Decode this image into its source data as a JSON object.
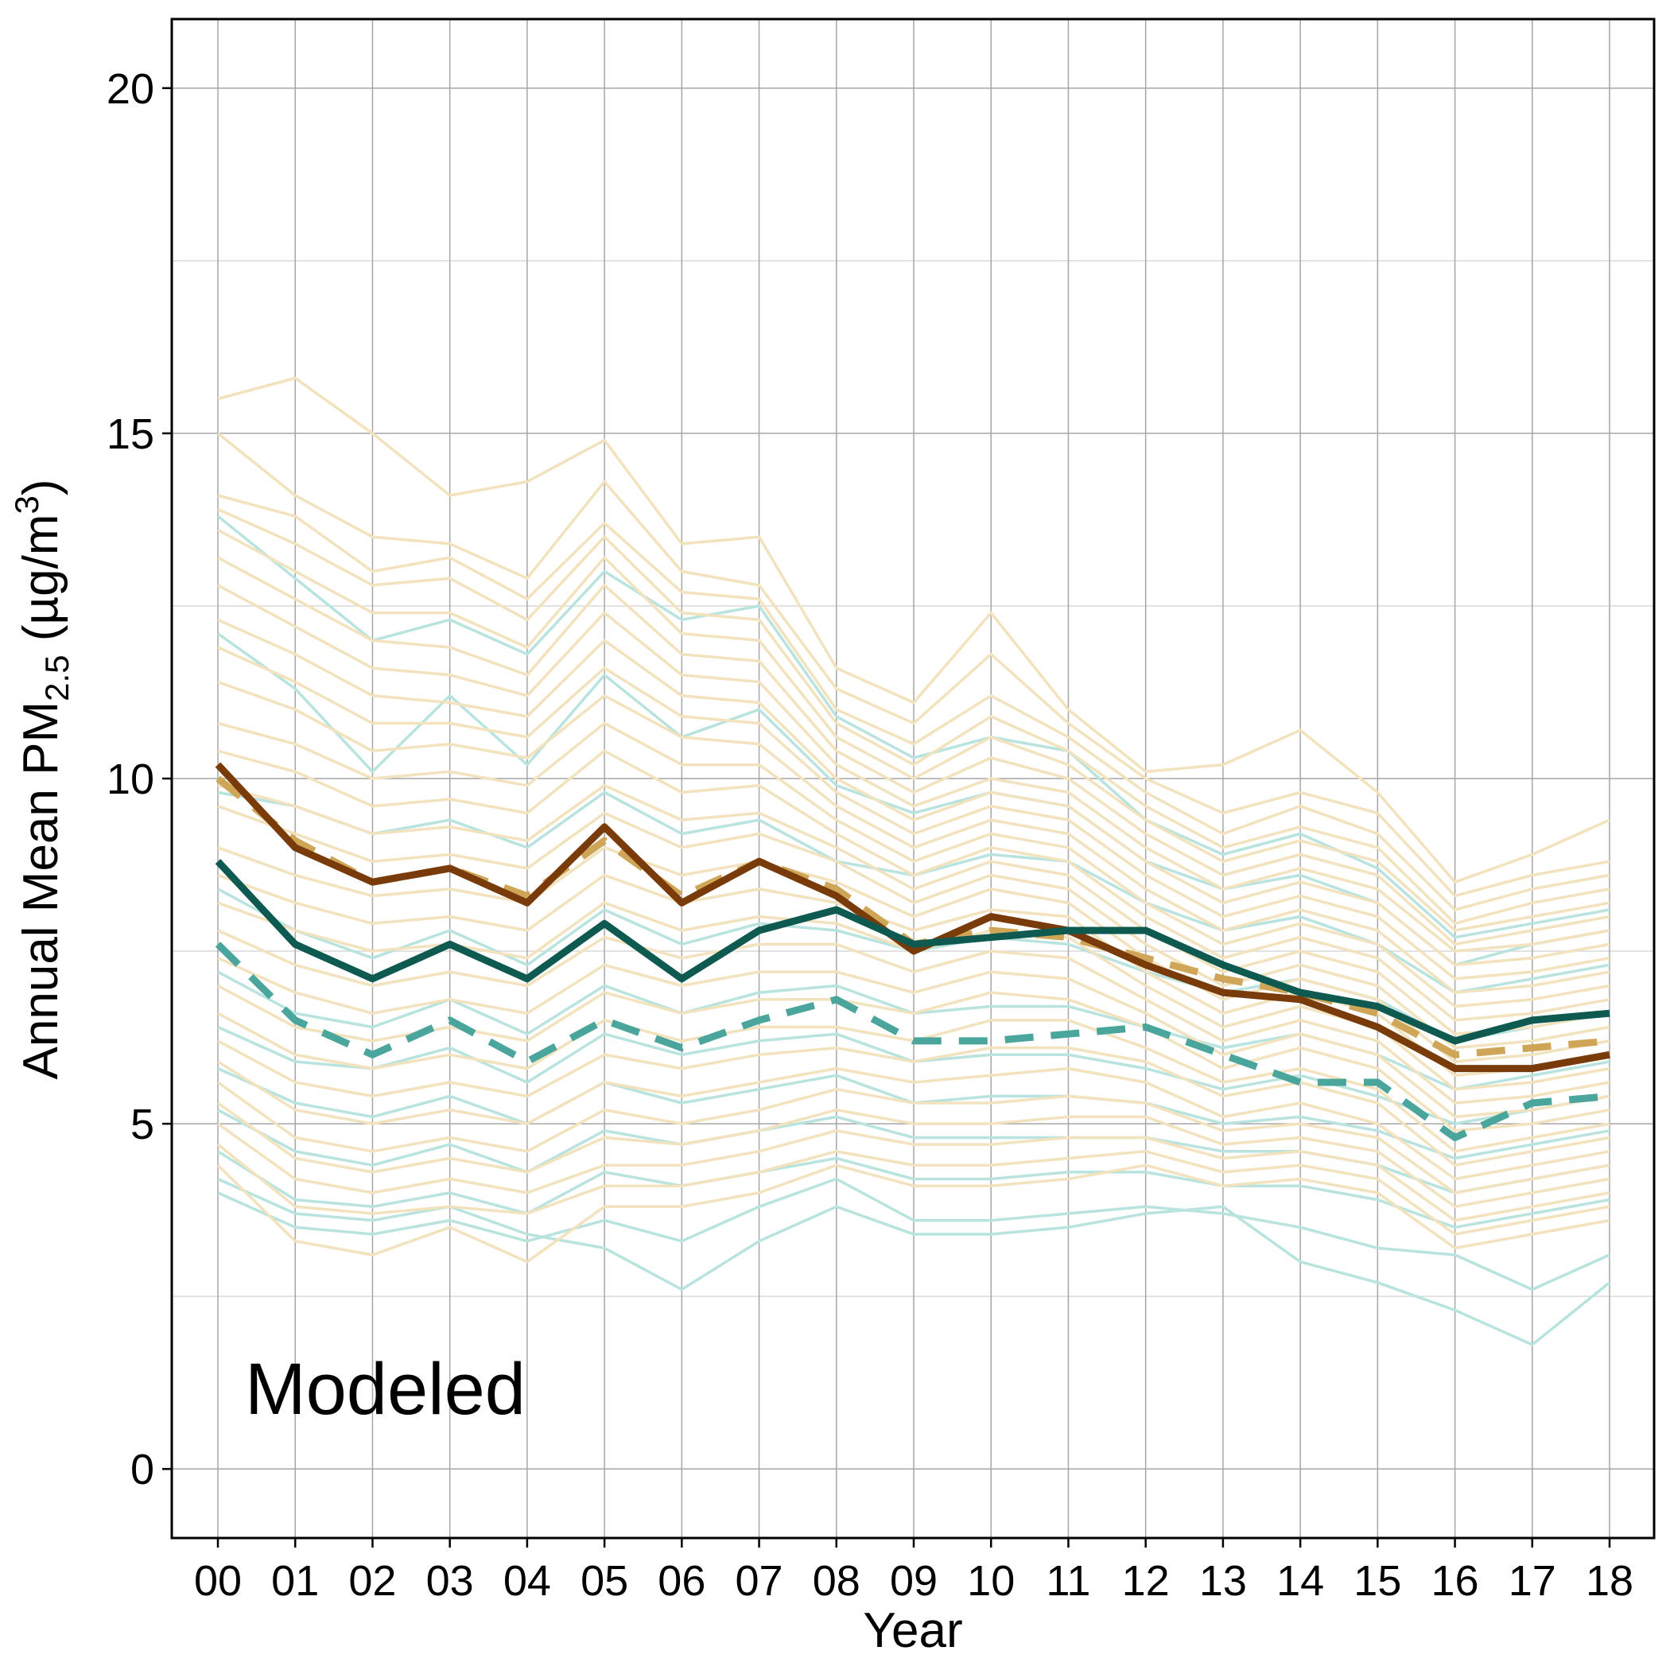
{
  "chart_data": {
    "type": "line",
    "title": "",
    "xlabel": "Year",
    "ylabel": "Annual Mean PM2.5 (µg/m3)",
    "ylabel_parts": {
      "prefix": "Annual Mean PM",
      "subscript": "2.5",
      "middle": " (µg/m",
      "superscript": "3",
      "suffix": ")"
    },
    "annotation": "Modeled",
    "x": [
      "00",
      "01",
      "02",
      "03",
      "04",
      "05",
      "06",
      "07",
      "08",
      "09",
      "10",
      "11",
      "12",
      "13",
      "14",
      "15",
      "16",
      "17",
      "18"
    ],
    "ylim": [
      -1,
      21
    ],
    "yticks": [
      0,
      5,
      10,
      15,
      20
    ],
    "grid": true,
    "legend": "none",
    "colors": {
      "light_tan": "#f2e2bd",
      "light_teal": "#b8e3de",
      "dark_brown": "#7a3b0a",
      "dark_teal": "#0e5a50",
      "tan_dashed": "#cfa657",
      "teal_dashed": "#4aa69c",
      "grid_major": "#a6a6a6",
      "grid_minor": "#d9d9d9",
      "axis": "#000000"
    },
    "background_series": {
      "tan": [
        [
          15.5,
          15.8,
          15.0,
          14.1,
          14.3,
          14.9,
          13.4,
          13.5,
          11.6,
          11.1,
          12.4,
          11.0,
          10.1,
          10.2,
          10.7,
          9.8,
          8.5,
          8.9,
          9.4
        ],
        [
          15.0,
          14.1,
          13.5,
          13.4,
          12.9,
          14.3,
          13.0,
          12.8,
          11.3,
          10.8,
          11.8,
          10.8,
          10.0,
          9.5,
          9.8,
          9.5,
          8.3,
          8.6,
          8.8
        ],
        [
          14.1,
          13.8,
          13.0,
          13.2,
          12.6,
          13.7,
          12.7,
          12.6,
          11.0,
          10.5,
          11.2,
          10.6,
          9.8,
          9.2,
          9.6,
          9.2,
          8.1,
          8.4,
          8.6
        ],
        [
          13.9,
          13.4,
          12.8,
          12.9,
          12.3,
          13.5,
          12.4,
          12.3,
          10.8,
          10.2,
          10.9,
          10.4,
          9.6,
          9.0,
          9.3,
          9.0,
          7.9,
          8.2,
          8.4
        ],
        [
          13.6,
          13.0,
          12.4,
          12.4,
          11.9,
          13.2,
          12.1,
          12.0,
          10.6,
          10.0,
          10.6,
          10.2,
          9.4,
          8.8,
          9.1,
          8.8,
          7.8,
          8.0,
          8.2
        ],
        [
          13.2,
          12.6,
          12.0,
          11.9,
          11.5,
          12.8,
          11.8,
          11.7,
          10.4,
          9.8,
          10.3,
          10.0,
          9.2,
          8.6,
          8.9,
          8.6,
          7.6,
          7.8,
          8.0
        ],
        [
          12.8,
          12.2,
          11.6,
          11.5,
          11.2,
          12.4,
          11.5,
          11.4,
          10.2,
          9.6,
          10.0,
          9.8,
          9.0,
          8.4,
          8.7,
          8.4,
          7.5,
          7.6,
          7.8
        ],
        [
          12.3,
          11.8,
          11.2,
          11.1,
          10.9,
          12.0,
          11.2,
          11.1,
          10.0,
          9.4,
          9.8,
          9.6,
          8.8,
          8.2,
          8.5,
          8.2,
          7.3,
          7.4,
          7.6
        ],
        [
          11.9,
          11.4,
          10.8,
          10.8,
          10.6,
          11.6,
          10.9,
          10.8,
          9.8,
          9.2,
          9.6,
          9.4,
          8.6,
          8.0,
          8.3,
          8.0,
          7.1,
          7.2,
          7.4
        ],
        [
          11.4,
          11.0,
          10.4,
          10.5,
          10.3,
          11.2,
          10.6,
          10.5,
          9.6,
          9.0,
          9.4,
          9.2,
          8.4,
          7.8,
          8.1,
          7.8,
          6.9,
          7.0,
          7.2
        ],
        [
          10.8,
          10.5,
          10.0,
          10.1,
          9.9,
          10.8,
          10.2,
          10.2,
          9.4,
          8.8,
          9.2,
          9.0,
          8.2,
          7.6,
          7.9,
          7.6,
          6.7,
          6.8,
          7.0
        ],
        [
          10.4,
          10.1,
          9.6,
          9.7,
          9.5,
          10.4,
          9.8,
          9.9,
          9.2,
          8.6,
          9.0,
          8.8,
          8.0,
          7.4,
          7.7,
          7.4,
          6.5,
          6.6,
          6.8
        ],
        [
          9.9,
          9.6,
          9.2,
          9.3,
          9.1,
          9.9,
          9.4,
          9.5,
          9.0,
          8.4,
          8.8,
          8.6,
          7.8,
          7.2,
          7.5,
          7.2,
          6.3,
          6.4,
          6.6
        ],
        [
          9.6,
          9.2,
          8.8,
          8.9,
          8.7,
          9.5,
          9.0,
          9.2,
          8.8,
          8.2,
          8.6,
          8.4,
          7.6,
          7.0,
          7.3,
          7.0,
          6.1,
          6.2,
          6.4
        ],
        [
          9.0,
          8.6,
          8.3,
          8.4,
          8.2,
          9.0,
          8.6,
          8.8,
          8.5,
          8.0,
          8.4,
          8.2,
          7.4,
          6.8,
          7.1,
          6.8,
          5.9,
          6.0,
          6.2
        ],
        [
          8.6,
          8.2,
          7.9,
          8.0,
          7.8,
          8.6,
          8.2,
          8.4,
          8.2,
          7.8,
          8.1,
          8.0,
          7.2,
          6.6,
          6.9,
          6.6,
          5.7,
          5.8,
          6.0
        ],
        [
          8.2,
          7.8,
          7.5,
          7.6,
          7.4,
          8.2,
          7.8,
          8.0,
          7.9,
          7.5,
          7.8,
          7.7,
          7.0,
          6.4,
          6.7,
          6.4,
          5.5,
          5.6,
          5.8
        ],
        [
          7.8,
          7.3,
          7.0,
          7.2,
          7.0,
          7.7,
          7.4,
          7.6,
          7.6,
          7.2,
          7.5,
          7.4,
          6.8,
          6.2,
          6.5,
          6.2,
          5.3,
          5.4,
          5.6
        ],
        [
          7.4,
          6.9,
          6.6,
          6.8,
          6.6,
          7.3,
          7.0,
          7.2,
          7.2,
          6.9,
          7.2,
          7.1,
          6.6,
          6.0,
          6.3,
          6.0,
          5.1,
          5.2,
          5.4
        ],
        [
          7.0,
          6.4,
          6.2,
          6.4,
          6.2,
          6.9,
          6.6,
          6.8,
          6.8,
          6.6,
          6.9,
          6.8,
          6.4,
          5.8,
          6.1,
          5.8,
          4.9,
          5.0,
          5.2
        ],
        [
          6.6,
          6.0,
          5.8,
          6.0,
          5.8,
          6.5,
          6.2,
          6.4,
          6.4,
          6.2,
          6.5,
          6.5,
          6.1,
          5.6,
          5.8,
          5.5,
          4.6,
          4.8,
          5.0
        ],
        [
          6.2,
          5.6,
          5.4,
          5.6,
          5.4,
          6.0,
          5.8,
          6.0,
          6.1,
          5.9,
          6.1,
          6.1,
          5.9,
          5.4,
          5.6,
          5.3,
          4.4,
          4.6,
          4.8
        ],
        [
          5.9,
          5.2,
          5.0,
          5.2,
          5.0,
          5.6,
          5.4,
          5.6,
          5.8,
          5.6,
          5.7,
          5.8,
          5.6,
          5.1,
          5.3,
          5.0,
          4.2,
          4.4,
          4.6
        ],
        [
          5.6,
          4.8,
          4.6,
          4.8,
          4.6,
          5.2,
          5.0,
          5.2,
          5.5,
          5.3,
          5.3,
          5.4,
          5.3,
          4.9,
          5.0,
          4.8,
          4.0,
          4.2,
          4.4
        ],
        [
          5.3,
          4.5,
          4.3,
          4.5,
          4.3,
          4.8,
          4.7,
          4.9,
          5.2,
          5.0,
          5.0,
          5.1,
          5.1,
          4.7,
          4.8,
          4.6,
          3.8,
          4.0,
          4.2
        ],
        [
          5.0,
          4.2,
          4.0,
          4.2,
          4.0,
          4.4,
          4.4,
          4.6,
          4.9,
          4.7,
          4.7,
          4.8,
          4.8,
          4.5,
          4.6,
          4.4,
          3.6,
          3.8,
          4.0
        ],
        [
          4.7,
          3.8,
          3.7,
          3.8,
          3.7,
          4.1,
          4.1,
          4.3,
          4.6,
          4.4,
          4.4,
          4.5,
          4.6,
          4.3,
          4.4,
          4.2,
          3.4,
          3.6,
          3.8
        ],
        [
          4.4,
          3.3,
          3.1,
          3.5,
          3.0,
          3.8,
          3.8,
          4.0,
          4.4,
          4.1,
          4.1,
          4.2,
          4.4,
          4.1,
          4.2,
          4.0,
          3.2,
          3.4,
          3.6
        ]
      ],
      "teal": [
        [
          13.8,
          12.9,
          12.0,
          12.3,
          11.8,
          13.0,
          12.3,
          12.5,
          10.9,
          10.3,
          10.6,
          10.4,
          9.4,
          8.9,
          9.2,
          8.7,
          7.7,
          7.9,
          8.1
        ],
        [
          12.1,
          11.3,
          10.1,
          11.2,
          10.2,
          11.5,
          10.6,
          11.0,
          9.9,
          9.5,
          9.8,
          9.6,
          8.8,
          8.4,
          8.6,
          8.2,
          7.3,
          7.6,
          7.8
        ],
        [
          9.8,
          9.6,
          9.2,
          9.4,
          9.0,
          9.8,
          9.2,
          9.4,
          8.8,
          8.6,
          8.9,
          8.8,
          8.2,
          7.8,
          8.0,
          7.6,
          6.9,
          7.1,
          7.3
        ],
        [
          8.4,
          7.8,
          7.4,
          7.8,
          7.3,
          8.1,
          7.6,
          7.9,
          7.8,
          7.5,
          7.7,
          7.6,
          7.2,
          6.9,
          7.1,
          6.8,
          6.2,
          6.4,
          6.6
        ],
        [
          7.2,
          6.6,
          6.4,
          6.8,
          6.3,
          7.0,
          6.6,
          6.9,
          7.0,
          6.6,
          6.7,
          6.7,
          6.4,
          6.1,
          6.3,
          6.0,
          5.5,
          5.7,
          5.9
        ],
        [
          6.4,
          5.9,
          5.8,
          6.1,
          5.6,
          6.3,
          6.0,
          6.2,
          6.3,
          5.9,
          6.0,
          6.0,
          5.8,
          5.5,
          5.7,
          5.4,
          5.0,
          5.2,
          5.4
        ],
        [
          5.8,
          5.3,
          5.1,
          5.4,
          5.0,
          5.6,
          5.3,
          5.5,
          5.7,
          5.3,
          5.4,
          5.4,
          5.3,
          5.0,
          5.1,
          4.9,
          4.5,
          4.7,
          4.9
        ],
        [
          5.2,
          4.6,
          4.4,
          4.7,
          4.3,
          4.9,
          4.7,
          4.9,
          5.1,
          4.8,
          4.8,
          4.8,
          4.8,
          4.6,
          4.6,
          4.4,
          4.0,
          4.2,
          4.4
        ],
        [
          4.6,
          3.9,
          3.8,
          4.0,
          3.7,
          4.3,
          4.1,
          4.3,
          4.5,
          4.2,
          4.2,
          4.3,
          4.3,
          4.1,
          4.1,
          3.9,
          3.5,
          3.7,
          3.9
        ],
        [
          4.0,
          3.5,
          3.4,
          3.6,
          3.3,
          3.6,
          3.3,
          3.8,
          4.2,
          3.6,
          3.6,
          3.7,
          3.8,
          3.7,
          3.5,
          3.2,
          3.1,
          2.6,
          3.1
        ],
        [
          4.2,
          3.7,
          3.6,
          3.8,
          3.4,
          3.2,
          2.6,
          3.3,
          3.8,
          3.4,
          3.4,
          3.5,
          3.7,
          3.8,
          3.0,
          2.7,
          2.3,
          1.8,
          2.7
        ]
      ]
    },
    "series": [
      {
        "style": "solid",
        "color": "#7a3b0a",
        "values": [
          10.2,
          9.0,
          8.5,
          8.7,
          8.2,
          9.3,
          8.2,
          8.8,
          8.3,
          7.5,
          8.0,
          7.8,
          7.3,
          6.9,
          6.8,
          6.4,
          5.8,
          5.8,
          6.0
        ]
      },
      {
        "style": "dashed",
        "color": "#cfa657",
        "values": [
          10.0,
          9.1,
          8.5,
          8.7,
          8.3,
          9.1,
          8.3,
          8.8,
          8.4,
          7.6,
          7.8,
          7.7,
          7.4,
          7.1,
          6.9,
          6.6,
          6.0,
          6.1,
          6.2
        ]
      },
      {
        "style": "solid",
        "color": "#0e5a50",
        "values": [
          8.8,
          7.6,
          7.1,
          7.6,
          7.1,
          7.9,
          7.1,
          7.8,
          8.1,
          7.6,
          7.7,
          7.8,
          7.8,
          7.3,
          6.9,
          6.7,
          6.2,
          6.5,
          6.6
        ]
      },
      {
        "style": "dashed",
        "color": "#4aa69c",
        "values": [
          7.6,
          6.5,
          6.0,
          6.5,
          5.9,
          6.5,
          6.1,
          6.5,
          6.8,
          6.2,
          6.2,
          6.3,
          6.4,
          6.0,
          5.6,
          5.6,
          4.8,
          5.3,
          5.4
        ]
      }
    ]
  }
}
